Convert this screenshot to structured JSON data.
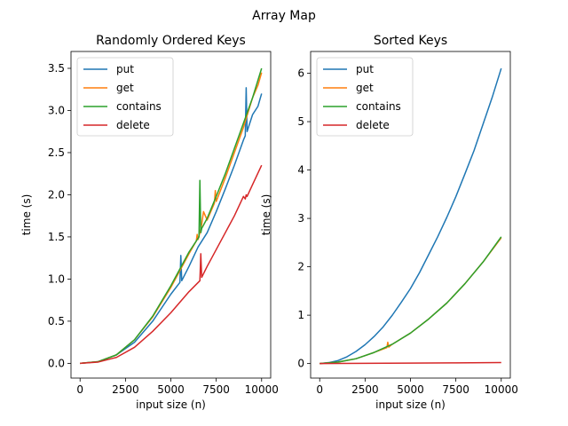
{
  "figure": {
    "suptitle": "Array Map"
  },
  "chart_data": [
    {
      "type": "line",
      "title": "Randomly Ordered Keys",
      "xlabel": "input size (n)",
      "ylabel": "time (s)",
      "xlim": [
        -500,
        10500
      ],
      "ylim": [
        -0.175,
        3.7
      ],
      "xticks": [
        0,
        2500,
        5000,
        7500,
        10000
      ],
      "xtick_labels": [
        "0",
        "2500",
        "5000",
        "7500",
        "10000"
      ],
      "yticks": [
        0.0,
        0.5,
        1.0,
        1.5,
        2.0,
        2.5,
        3.0,
        3.5
      ],
      "ytick_labels": [
        "0.0",
        "0.5",
        "1.0",
        "1.5",
        "2.0",
        "2.5",
        "3.0",
        "3.5"
      ],
      "grid": false,
      "legend": "upper-left",
      "series": [
        {
          "name": "put",
          "color": "#1f77b4",
          "x": [
            0,
            1000,
            2000,
            3000,
            4000,
            5000,
            5500,
            5550,
            5600,
            6000,
            6500,
            7000,
            7500,
            8000,
            8500,
            9000,
            9100,
            9150,
            9200,
            9500,
            9800,
            10000
          ],
          "y": [
            0,
            0.02,
            0.1,
            0.25,
            0.5,
            0.82,
            0.96,
            1.28,
            0.98,
            1.15,
            1.38,
            1.55,
            1.8,
            2.07,
            2.35,
            2.65,
            2.7,
            3.27,
            2.75,
            2.95,
            3.05,
            3.2
          ]
        },
        {
          "name": "get",
          "color": "#ff7f0e",
          "x": [
            0,
            1000,
            2000,
            3000,
            4000,
            5000,
            6000,
            6400,
            6450,
            6500,
            6600,
            6700,
            6800,
            7000,
            7400,
            7450,
            7500,
            8000,
            8500,
            9000,
            9500,
            9800,
            10000
          ],
          "y": [
            0,
            0.02,
            0.1,
            0.28,
            0.55,
            0.9,
            1.3,
            1.45,
            1.53,
            1.47,
            1.55,
            1.65,
            1.8,
            1.7,
            1.9,
            2.05,
            1.92,
            2.2,
            2.5,
            2.8,
            3.15,
            3.3,
            3.45
          ]
        },
        {
          "name": "contains",
          "color": "#2ca02c",
          "x": [
            0,
            1000,
            2000,
            3000,
            4000,
            5000,
            6000,
            6550,
            6600,
            6650,
            6700,
            7000,
            7500,
            8000,
            8500,
            9000,
            9500,
            10000
          ],
          "y": [
            0,
            0.02,
            0.1,
            0.28,
            0.56,
            0.92,
            1.32,
            1.5,
            2.17,
            1.55,
            1.6,
            1.72,
            1.98,
            2.25,
            2.55,
            2.85,
            3.15,
            3.5
          ]
        },
        {
          "name": "delete",
          "color": "#d62728",
          "x": [
            0,
            1000,
            2000,
            3000,
            4000,
            5000,
            6000,
            6600,
            6650,
            6700,
            7000,
            7500,
            8000,
            8500,
            9000,
            9100,
            9150,
            9200,
            9500,
            10000
          ],
          "y": [
            0,
            0.015,
            0.07,
            0.19,
            0.38,
            0.6,
            0.85,
            0.98,
            1.3,
            1.02,
            1.15,
            1.35,
            1.55,
            1.75,
            1.98,
            1.95,
            2.0,
            1.98,
            2.12,
            2.35
          ]
        }
      ]
    },
    {
      "type": "line",
      "title": "Sorted Keys",
      "xlabel": "input size (n)",
      "ylabel": "time (s)",
      "xlim": [
        -500,
        10500
      ],
      "ylim": [
        -0.3,
        6.45
      ],
      "xticks": [
        0,
        2500,
        5000,
        7500,
        10000
      ],
      "xtick_labels": [
        "0",
        "2500",
        "5000",
        "7500",
        "10000"
      ],
      "yticks": [
        0,
        1,
        2,
        3,
        4,
        5,
        6
      ],
      "ytick_labels": [
        "0",
        "1",
        "2",
        "3",
        "4",
        "5",
        "6"
      ],
      "grid": false,
      "legend": "upper-left",
      "series": [
        {
          "name": "put",
          "color": "#1f77b4",
          "x": [
            0,
            500,
            1000,
            1500,
            2000,
            2500,
            3000,
            3500,
            4000,
            4500,
            5000,
            5500,
            6000,
            6500,
            7000,
            7500,
            8000,
            8500,
            9000,
            9500,
            10000
          ],
          "y": [
            0,
            0.02,
            0.06,
            0.14,
            0.25,
            0.39,
            0.56,
            0.76,
            1.0,
            1.27,
            1.55,
            1.88,
            2.25,
            2.62,
            3.02,
            3.45,
            3.92,
            4.4,
            4.95,
            5.5,
            6.1
          ]
        },
        {
          "name": "get",
          "color": "#ff7f0e",
          "x": [
            0,
            1000,
            2000,
            3000,
            3700,
            3750,
            3800,
            4000,
            5000,
            6000,
            7000,
            8000,
            9000,
            10000
          ],
          "y": [
            0,
            0.03,
            0.1,
            0.23,
            0.33,
            0.44,
            0.34,
            0.4,
            0.63,
            0.92,
            1.25,
            1.65,
            2.1,
            2.6
          ]
        },
        {
          "name": "contains",
          "color": "#2ca02c",
          "x": [
            0,
            1000,
            2000,
            3000,
            4000,
            5000,
            6000,
            7000,
            8000,
            9000,
            10000
          ],
          "y": [
            0,
            0.03,
            0.1,
            0.23,
            0.4,
            0.63,
            0.92,
            1.25,
            1.65,
            2.1,
            2.62
          ]
        },
        {
          "name": "delete",
          "color": "#d62728",
          "x": [
            0,
            2500,
            5000,
            7500,
            10000
          ],
          "y": [
            0,
            0.005,
            0.01,
            0.015,
            0.02
          ]
        }
      ]
    }
  ]
}
